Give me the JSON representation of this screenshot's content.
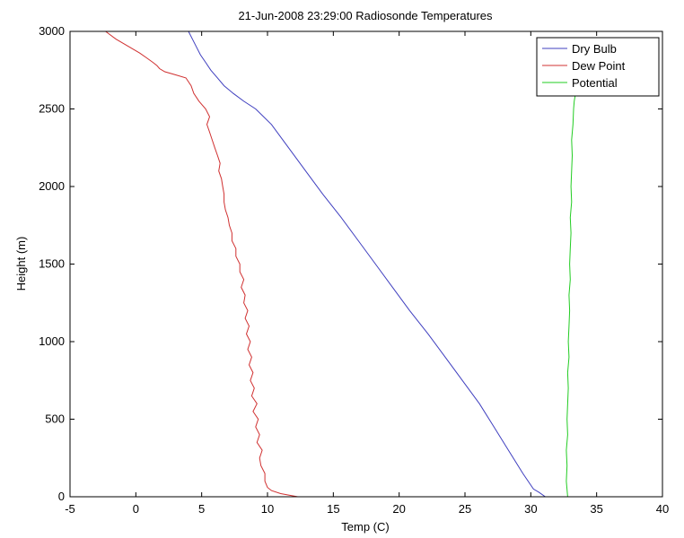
{
  "chart_data": {
    "type": "line",
    "title": "21-Jun-2008 23:29:00 Radiosonde Temperatures",
    "xlabel": "Temp (C)",
    "ylabel": "Height (m)",
    "xlim": [
      -5,
      40
    ],
    "ylim": [
      0,
      3000
    ],
    "xticks": [
      -5,
      0,
      5,
      10,
      15,
      20,
      25,
      30,
      35,
      40
    ],
    "yticks": [
      0,
      500,
      1000,
      1500,
      2000,
      2500,
      3000
    ],
    "grid": false,
    "legend_position": "top-right",
    "series": [
      {
        "name": "Dry Bulb",
        "color": "#3f3fbf",
        "x": [
          31.1,
          30.6,
          30.2,
          29.4,
          28.3,
          27.2,
          26.1,
          24.8,
          23.5,
          22.2,
          20.8,
          19.5,
          18.2,
          16.9,
          15.6,
          14.2,
          12.9,
          11.6,
          10.3,
          9.1,
          8.2,
          7.4,
          6.7,
          6.2,
          5.7,
          5.3,
          4.9,
          4.6,
          4.3,
          4.0
        ],
        "y": [
          0,
          30,
          50,
          150,
          300,
          450,
          600,
          750,
          900,
          1050,
          1200,
          1350,
          1500,
          1650,
          1800,
          1950,
          2100,
          2250,
          2400,
          2500,
          2550,
          2600,
          2650,
          2700,
          2750,
          2800,
          2850,
          2900,
          2950,
          3000
        ]
      },
      {
        "name": "Dew Point",
        "color": "#d03030",
        "x": [
          12.3,
          11.0,
          10.3,
          10.0,
          9.8,
          9.8,
          9.5,
          9.4,
          9.6,
          9.2,
          9.4,
          9.1,
          9.3,
          8.9,
          9.2,
          8.8,
          9.0,
          8.7,
          8.9,
          8.6,
          8.8,
          8.5,
          8.7,
          8.4,
          8.6,
          8.3,
          8.5,
          8.2,
          8.3,
          8.0,
          8.2,
          7.9,
          7.9,
          7.6,
          7.6,
          7.3,
          7.3,
          7.1,
          7.0,
          6.8,
          6.7,
          6.7,
          6.6,
          6.5,
          6.3,
          6.4,
          6.2,
          6.0,
          5.8,
          5.6,
          5.4,
          5.6,
          5.3,
          4.8,
          4.4,
          4.2,
          3.8,
          3.0,
          2.2,
          1.8,
          1.6,
          1.3,
          0.8,
          0.3,
          -0.5,
          -1.5,
          -2.3
        ],
        "y": [
          0,
          20,
          40,
          60,
          100,
          150,
          200,
          250,
          300,
          350,
          400,
          450,
          500,
          550,
          600,
          650,
          700,
          750,
          800,
          850,
          900,
          950,
          1000,
          1050,
          1100,
          1150,
          1200,
          1250,
          1300,
          1350,
          1400,
          1450,
          1500,
          1550,
          1600,
          1650,
          1700,
          1750,
          1800,
          1850,
          1900,
          1950,
          2000,
          2050,
          2100,
          2150,
          2200,
          2250,
          2300,
          2350,
          2400,
          2450,
          2500,
          2550,
          2600,
          2650,
          2700,
          2720,
          2740,
          2760,
          2780,
          2800,
          2830,
          2860,
          2900,
          2950,
          3000
        ]
      },
      {
        "name": "Potential",
        "color": "#22cc22",
        "x": [
          32.8,
          32.7,
          32.75,
          32.7,
          32.8,
          32.75,
          32.8,
          32.85,
          32.8,
          32.9,
          32.85,
          32.9,
          32.95,
          32.9,
          33.0,
          32.95,
          33.0,
          33.05,
          33.0,
          33.1,
          33.05,
          33.1,
          33.15,
          33.1,
          33.2,
          33.25,
          33.3,
          33.4
        ],
        "y": [
          0,
          100,
          200,
          300,
          400,
          500,
          600,
          700,
          800,
          900,
          1000,
          1100,
          1200,
          1300,
          1400,
          1500,
          1600,
          1700,
          1800,
          1900,
          2000,
          2100,
          2200,
          2300,
          2400,
          2500,
          2550,
          2600
        ]
      }
    ]
  }
}
